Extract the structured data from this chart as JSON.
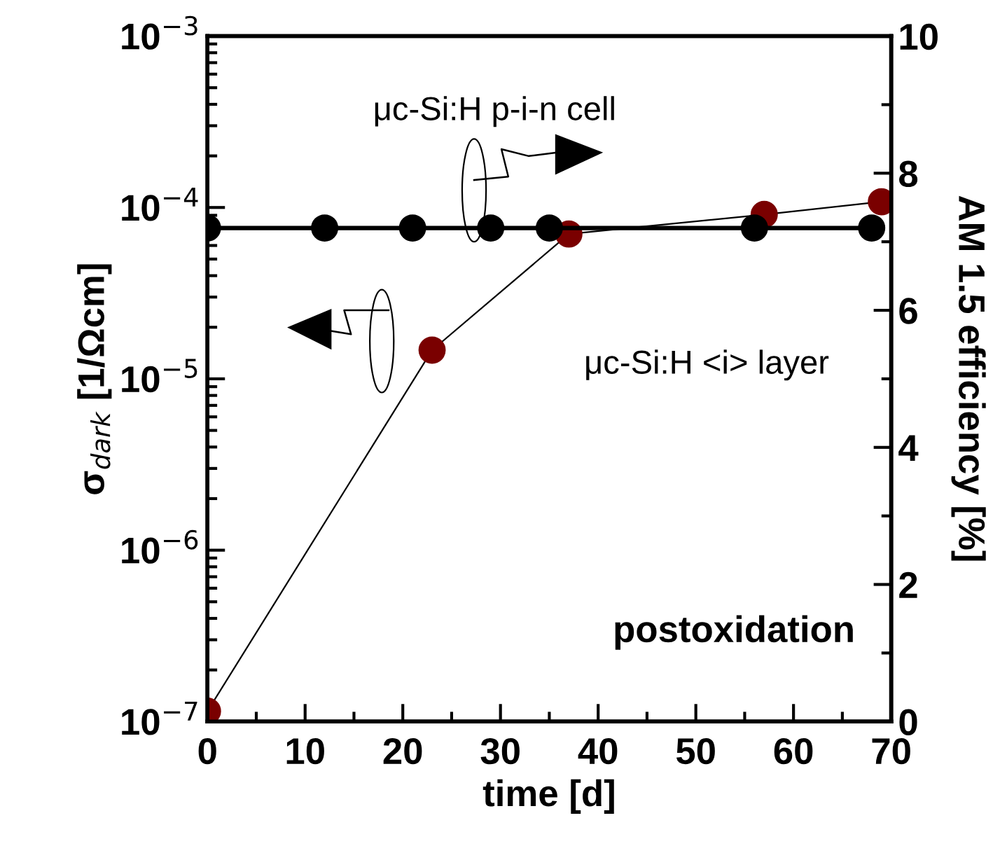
{
  "chart_data": {
    "type": "line",
    "xlabel": "time [d]",
    "ylabel": "σ$_{dark}$ [1/Ωcm]",
    "y2label": "AM 1.5 efficiency [%]",
    "log": "y",
    "xlim": [
      0,
      70
    ],
    "xticks": [
      0,
      10,
      20,
      30,
      40,
      50,
      60,
      70
    ],
    "ylim": [
      1e-07,
      0.001
    ],
    "yticks": [
      {
        "value": 1e-07,
        "label": "10$^{−7}$"
      },
      {
        "value": 1e-06,
        "label": "10$^{−6}$"
      },
      {
        "value": 1e-05,
        "label": "10$^{−5}$"
      },
      {
        "value": 0.0001,
        "label": "10$^{−4}$"
      },
      {
        "value": 0.001,
        "label": "10$^{−3}$"
      }
    ],
    "y2lim": [
      0,
      10
    ],
    "y2ticks": [
      0,
      2,
      4,
      6,
      8,
      10
    ],
    "grid": false,
    "legend": false,
    "marker": "circle",
    "line_style": "solid",
    "series": [
      {
        "color": "#7a0000",
        "x": [
          0,
          23,
          37,
          57,
          69
        ],
        "values": [
          1.15e-07,
          1.47e-05,
          7e-05,
          9.1e-05,
          0.000108
        ]
      },
      {
        "color": "#000000",
        "axis": "y2",
        "x": [
          0,
          12,
          21,
          29,
          35,
          56,
          68
        ],
        "values": [
          7.2,
          7.2,
          7.2,
          7.2,
          7.2,
          7.2,
          7.2
        ]
      }
    ],
    "annotations": [
      "μc-Si:H p-i-n cell",
      "μc-Si:H <i> layer",
      "postoxidation"
    ]
  }
}
